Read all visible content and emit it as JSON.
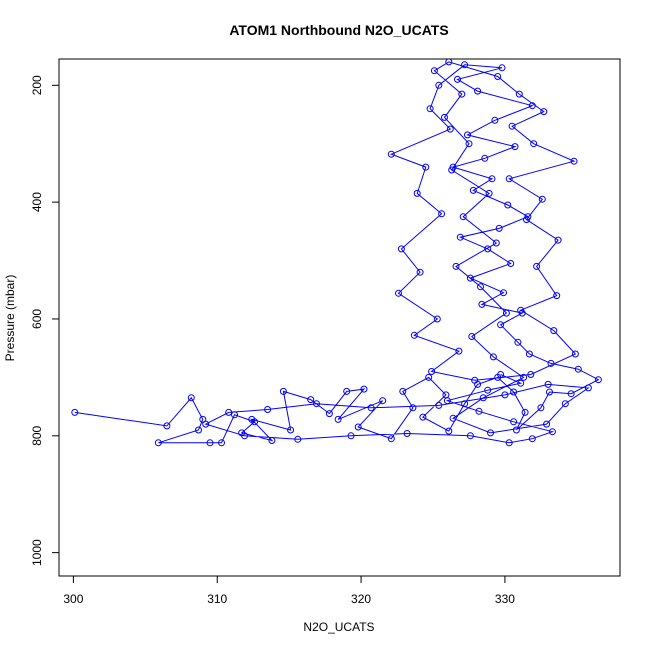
{
  "chart_data": {
    "type": "line",
    "title": "ATOM1 Northbound N2O_UCATS",
    "xlabel": "N2O_UCATS",
    "ylabel": "Pressure (mbar)",
    "xlim": [
      299,
      338
    ],
    "ylim": [
      1040,
      155
    ],
    "y_reversed": true,
    "xticks": [
      300,
      310,
      320,
      330
    ],
    "yticks": [
      200,
      400,
      600,
      800,
      1000
    ],
    "grid": false,
    "legend": "none",
    "series_color": "#0000FF",
    "marker": "open-circle",
    "series": [
      {
        "values": [
          [
            300.1,
            760
          ],
          [
            306.5,
            783
          ],
          [
            308.2,
            735
          ],
          [
            309.0,
            772
          ],
          [
            308.7,
            790
          ],
          [
            305.9,
            812
          ],
          [
            309.5,
            812
          ],
          [
            310.3,
            812
          ],
          [
            311.2,
            764
          ],
          [
            312.6,
            776
          ],
          [
            311.7,
            795
          ],
          [
            313.8,
            808
          ],
          [
            312.4,
            772
          ],
          [
            315.1,
            790
          ],
          [
            314.6,
            724
          ],
          [
            316.5,
            738
          ],
          [
            317.8,
            762
          ],
          [
            319.0,
            724
          ],
          [
            320.2,
            720
          ],
          [
            318.4,
            772
          ],
          [
            321.5,
            740
          ],
          [
            319.8,
            785
          ],
          [
            322.1,
            805
          ],
          [
            323.6,
            752
          ],
          [
            322.9,
            724
          ],
          [
            324.7,
            700
          ],
          [
            325.9,
            730
          ],
          [
            324.3,
            768
          ],
          [
            326.1,
            792
          ],
          [
            327.2,
            745
          ],
          [
            328.1,
            712
          ],
          [
            329.5,
            700
          ],
          [
            330.6,
            725
          ],
          [
            331.4,
            760
          ],
          [
            330.8,
            790
          ],
          [
            332.5,
            752
          ],
          [
            333.1,
            725
          ],
          [
            334.6,
            728
          ],
          [
            336.5,
            704
          ],
          [
            335.1,
            686
          ],
          [
            333.2,
            676
          ],
          [
            331.7,
            660
          ],
          [
            330.9,
            640
          ],
          [
            329.7,
            610
          ],
          [
            331.2,
            590
          ],
          [
            328.4,
            575
          ],
          [
            329.9,
            555
          ],
          [
            327.6,
            530
          ],
          [
            330.4,
            505
          ],
          [
            328.8,
            480
          ],
          [
            326.9,
            460
          ],
          [
            329.6,
            445
          ],
          [
            331.6,
            425
          ],
          [
            330.2,
            405
          ],
          [
            327.8,
            380
          ],
          [
            329.1,
            360
          ],
          [
            326.4,
            340
          ],
          [
            328.6,
            325
          ],
          [
            330.7,
            305
          ],
          [
            327.4,
            285
          ],
          [
            329.3,
            260
          ],
          [
            331.9,
            235
          ],
          [
            328.1,
            210
          ],
          [
            326.7,
            190
          ],
          [
            329.8,
            170
          ],
          [
            327.2,
            165
          ],
          [
            325.4,
            200
          ],
          [
            324.8,
            240
          ],
          [
            326.2,
            275
          ],
          [
            322.1,
            318
          ],
          [
            324.5,
            340
          ],
          [
            323.9,
            385
          ],
          [
            325.6,
            420
          ],
          [
            322.8,
            480
          ],
          [
            324.1,
            520
          ],
          [
            322.6,
            556
          ],
          [
            325.3,
            600
          ],
          [
            323.7,
            628
          ],
          [
            326.8,
            655
          ],
          [
            324.9,
            690
          ],
          [
            327.9,
            705
          ],
          [
            331.8,
            695
          ],
          [
            334.9,
            660
          ],
          [
            333.4,
            620
          ],
          [
            331.1,
            585
          ],
          [
            333.6,
            560
          ],
          [
            332.2,
            510
          ],
          [
            333.7,
            465
          ],
          [
            331.5,
            430
          ],
          [
            332.6,
            395
          ],
          [
            330.3,
            360
          ],
          [
            334.8,
            330
          ],
          [
            332.0,
            300
          ],
          [
            330.5,
            270
          ],
          [
            332.7,
            245
          ],
          [
            331.0,
            215
          ],
          [
            329.5,
            185
          ],
          [
            326.1,
            160
          ],
          [
            325.1,
            175
          ],
          [
            327.0,
            215
          ],
          [
            325.8,
            255
          ],
          [
            327.5,
            300
          ],
          [
            326.3,
            345
          ],
          [
            328.9,
            385
          ],
          [
            327.1,
            425
          ],
          [
            329.4,
            470
          ],
          [
            326.6,
            510
          ],
          [
            328.3,
            545
          ],
          [
            330.1,
            590
          ],
          [
            327.7,
            630
          ],
          [
            329.2,
            665
          ],
          [
            331.3,
            700
          ],
          [
            328.5,
            735
          ],
          [
            326.4,
            770
          ],
          [
            329.0,
            795
          ],
          [
            332.9,
            780
          ],
          [
            334.2,
            745
          ],
          [
            335.8,
            718
          ],
          [
            333.0,
            712
          ],
          [
            330.0,
            730
          ],
          [
            325.4,
            748
          ],
          [
            320.7,
            752
          ],
          [
            316.9,
            745
          ],
          [
            313.5,
            755
          ],
          [
            310.8,
            760
          ],
          [
            309.2,
            780
          ],
          [
            311.9,
            800
          ],
          [
            315.6,
            806
          ],
          [
            319.3,
            800
          ],
          [
            323.2,
            796
          ],
          [
            327.6,
            800
          ],
          [
            330.3,
            812
          ],
          [
            331.9,
            805
          ],
          [
            333.3,
            793
          ],
          [
            330.6,
            776
          ],
          [
            328.2,
            758
          ],
          [
            326.0,
            740
          ],
          [
            328.8,
            722
          ],
          [
            331.1,
            710
          ],
          [
            329.7,
            695
          ]
        ]
      }
    ]
  }
}
